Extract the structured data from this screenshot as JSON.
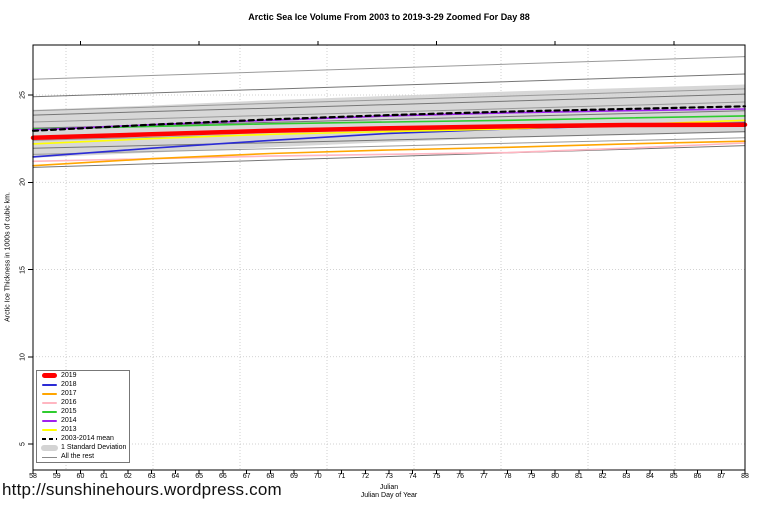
{
  "footer": {
    "url_text": "http://sunshinehours.wordpress.com"
  },
  "chart_data": {
    "type": "line",
    "title": "Arctic Sea Ice Volume From 2003 to 2019-3-29 Zoomed For Day 88",
    "xlabel": "Julian",
    "xlabel2": "Julian Day of Year",
    "ylabel": "Arctic Ice Thickness in 1000s of cubic km.",
    "xlim": [
      58,
      88
    ],
    "ylim": [
      3.5,
      28
    ],
    "grid": true,
    "legend_position": "bottom-left",
    "x_ticks": [
      58,
      59,
      60,
      61,
      62,
      63,
      64,
      65,
      66,
      67,
      68,
      69,
      70,
      71,
      72,
      73,
      74,
      75,
      76,
      77,
      78,
      79,
      80,
      81,
      82,
      83,
      84,
      85,
      86,
      87,
      88
    ],
    "x_ticks_top": [
      60,
      65,
      70,
      75,
      80,
      85
    ],
    "y_ticks": [
      5,
      10,
      15,
      20,
      25
    ],
    "x": [
      58,
      63,
      68,
      73,
      78,
      83,
      88
    ],
    "series": [
      {
        "name": "2019",
        "color": "#ff0000",
        "width": 4.5,
        "dashed": false,
        "values": [
          22.55,
          22.75,
          22.95,
          23.1,
          23.2,
          23.28,
          23.3
        ]
      },
      {
        "name": "2018",
        "color": "#2b2bd5",
        "width": 1.6,
        "dashed": false,
        "values": [
          21.45,
          21.95,
          22.4,
          22.8,
          23.05,
          23.25,
          23.4
        ]
      },
      {
        "name": "2017",
        "color": "#ffa500",
        "width": 1.6,
        "dashed": false,
        "values": [
          20.95,
          21.35,
          21.65,
          21.85,
          22.0,
          22.2,
          22.35
        ]
      },
      {
        "name": "2016",
        "color": "#ffb6c1",
        "width": 1.6,
        "dashed": false,
        "values": [
          21.2,
          21.35,
          21.5,
          21.6,
          21.7,
          21.95,
          22.25
        ]
      },
      {
        "name": "2015",
        "color": "#2ecc2e",
        "width": 1.6,
        "dashed": false,
        "values": [
          23.05,
          23.2,
          23.35,
          23.45,
          23.55,
          23.68,
          23.8
        ]
      },
      {
        "name": "2014",
        "color": "#a020f0",
        "width": 1.6,
        "dashed": false,
        "values": [
          23.0,
          23.3,
          23.55,
          23.8,
          23.98,
          24.1,
          24.2
        ]
      },
      {
        "name": "2013",
        "color": "#ffff00",
        "width": 1.6,
        "dashed": false,
        "values": [
          22.2,
          22.5,
          22.75,
          22.9,
          23.05,
          23.3,
          23.55
        ]
      },
      {
        "name": "2003-2014 mean",
        "color": "#000000",
        "width": 2.2,
        "dashed": true,
        "values": [
          22.95,
          23.3,
          23.6,
          23.85,
          24.05,
          24.2,
          24.35
        ]
      }
    ],
    "std_band": {
      "name": "1 Standard Deviation",
      "color": "#d3d3d3",
      "upper": [
        24.15,
        24.4,
        24.7,
        24.95,
        25.2,
        25.4,
        25.6
      ],
      "lower": [
        21.4,
        21.7,
        22.0,
        22.3,
        22.55,
        22.7,
        22.85
      ]
    },
    "rest": {
      "name": "All the rest",
      "color": "#9a9a9a",
      "color_alt": "#767676",
      "lines": [
        [
          25.9,
          27.2
        ],
        [
          24.9,
          26.2
        ],
        [
          24.1,
          25.35
        ],
        [
          23.85,
          25.05
        ],
        [
          23.45,
          24.6
        ],
        [
          23.1,
          24.1
        ],
        [
          22.4,
          23.45
        ],
        [
          21.95,
          22.9
        ],
        [
          21.6,
          22.55
        ],
        [
          20.85,
          22.1
        ]
      ]
    },
    "legend": [
      {
        "label": "2019",
        "swatch": "thick",
        "color": "#ff0000"
      },
      {
        "label": "2018",
        "swatch": "line",
        "color": "#2b2bd5"
      },
      {
        "label": "2017",
        "swatch": "line",
        "color": "#ffa500"
      },
      {
        "label": "2016",
        "swatch": "line",
        "color": "#ffb6c1"
      },
      {
        "label": "2015",
        "swatch": "line",
        "color": "#2ecc2e"
      },
      {
        "label": "2014",
        "swatch": "line",
        "color": "#a020f0"
      },
      {
        "label": "2013",
        "swatch": "line",
        "color": "#ffff00"
      },
      {
        "label": "2003-2014 mean",
        "swatch": "dashed",
        "color": "#000000"
      },
      {
        "label": "1 Standard Deviation",
        "swatch": "band",
        "color": "#d3d3d3"
      },
      {
        "label": "All the rest",
        "swatch": "thin",
        "color": "#8a8a8a"
      }
    ]
  }
}
